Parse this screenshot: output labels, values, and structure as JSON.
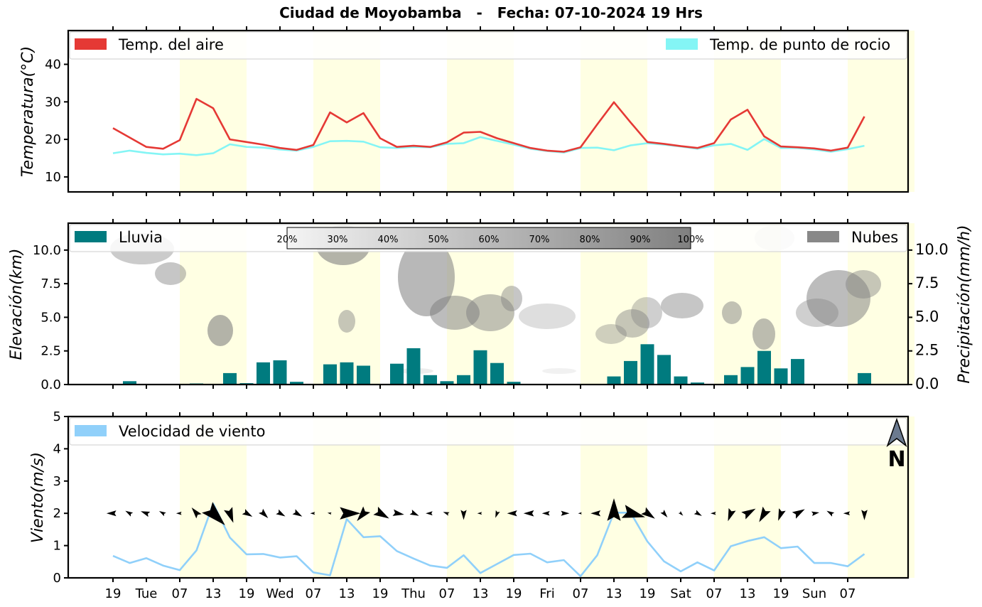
{
  "title": "Ciudad de Moyobamba   -   Fecha: 07-10-2024 19 Hrs",
  "x_tick_labels": [
    "19",
    "Tue",
    "07",
    "13",
    "19",
    "Wed",
    "07",
    "13",
    "19",
    "Thu",
    "07",
    "13",
    "19",
    "Fri",
    "07",
    "13",
    "19",
    "Sat",
    "07",
    "13",
    "19",
    "Sun",
    "07"
  ],
  "colors": {
    "temp_air": "#e53935",
    "temp_dew": "#84f5f5",
    "rain": "#007b7f",
    "wind": "#90d0fa",
    "night": "#ffffe3",
    "cloud": "#808080"
  },
  "chart_data": [
    {
      "type": "line",
      "ylabel": "Temperatura(°C)",
      "ylim": [
        6,
        49
      ],
      "yticks": [
        10,
        20,
        30,
        40
      ],
      "series": [
        {
          "name": "Temp. del aire",
          "values": [
            23,
            20.5,
            18,
            17.5,
            19.8,
            30.8,
            28.3,
            20,
            19.3,
            18.6,
            17.7,
            17.2,
            18.5,
            27.2,
            24.5,
            27,
            20.3,
            18,
            18.3,
            18,
            19.2,
            21.8,
            22,
            20.3,
            19,
            17.7,
            17,
            16.7,
            17.9,
            24,
            29.9,
            24.5,
            19.3,
            18.8,
            18.2,
            17.7,
            19,
            25.3,
            27.9,
            20.8,
            18.1,
            17.9,
            17.6,
            17,
            17.8,
            26.1
          ]
        },
        {
          "name": "Temp. de punto de rocio",
          "values": [
            16.3,
            17,
            16.4,
            16,
            16.2,
            15.8,
            16.3,
            18.7,
            18,
            17.8,
            17.3,
            17,
            18,
            19.5,
            19.6,
            19.4,
            17.9,
            17.7,
            18,
            17.9,
            18.8,
            19,
            20.6,
            19.6,
            18.6,
            17.5,
            16.9,
            16.5,
            17.7,
            17.8,
            17.1,
            18.4,
            19,
            18.6,
            18.1,
            17.5,
            18.4,
            18.8,
            17.2,
            20.1,
            17.7,
            17.7,
            17.3,
            16.7,
            17.4,
            18.3
          ]
        }
      ]
    },
    {
      "type": "bar",
      "ylabel": "Elevación(km)",
      "ylabel_right": "Precipitación(mm/h)",
      "ylim": [
        0,
        12
      ],
      "yticks": [
        0,
        2.5,
        5,
        7.5,
        10
      ],
      "ytick_labels": [
        "0.0",
        "2.5",
        "5.0",
        "7.5",
        "10.0"
      ],
      "series": [
        {
          "name": "Lluvia",
          "values": [
            0,
            0.25,
            0,
            0,
            0,
            0.08,
            0.05,
            0.85,
            0.1,
            1.65,
            1.8,
            0.2,
            0,
            1.5,
            1.65,
            1.4,
            0.05,
            1.55,
            2.7,
            0.7,
            0.25,
            0.7,
            2.55,
            1.6,
            0.2,
            0,
            0,
            0,
            0,
            0.05,
            0.6,
            1.75,
            3,
            2.2,
            0.6,
            0.15,
            0.05,
            0.7,
            1.3,
            2.5,
            1.2,
            1.9,
            0.05,
            0,
            0.05,
            0.85
          ]
        },
        {
          "name": "Nubes",
          "values": []
        }
      ],
      "cloud_colorbar": [
        "20%",
        "30%",
        "40%",
        "50%",
        "60%",
        "70%",
        "80%",
        "90%",
        "100%"
      ]
    },
    {
      "type": "line",
      "ylabel": "Viento(m/s)",
      "ylim": [
        0,
        5
      ],
      "yticks": [
        0,
        1,
        2,
        3,
        4,
        5
      ],
      "series": [
        {
          "name": "Velocidad de viento",
          "values": [
            0.68,
            0.46,
            0.61,
            0.38,
            0.24,
            0.85,
            2.3,
            1.25,
            0.73,
            0.74,
            0.63,
            0.67,
            0.17,
            0.08,
            1.82,
            1.26,
            1.29,
            0.83,
            0.6,
            0.38,
            0.31,
            0.7,
            0.15,
            0.43,
            0.71,
            0.75,
            0.48,
            0.55,
            0.05,
            0.7,
            2.02,
            2.02,
            1.13,
            0.51,
            0.2,
            0.48,
            0.23,
            0.98,
            1.14,
            1.26,
            0.92,
            0.97,
            0.46,
            0.46,
            0.36,
            0.74
          ]
        }
      ],
      "wind_direction_deg": [
        270,
        300,
        290,
        300,
        270,
        320,
        135,
        160,
        120,
        135,
        120,
        120,
        270,
        280,
        90,
        220,
        120,
        100,
        115,
        270,
        290,
        180,
        270,
        200,
        270,
        270,
        270,
        90,
        270,
        270,
        0,
        105,
        125,
        140,
        135,
        120,
        270,
        200,
        60,
        210,
        200,
        60,
        80,
        300,
        270,
        180
      ],
      "north_label": "N"
    }
  ]
}
